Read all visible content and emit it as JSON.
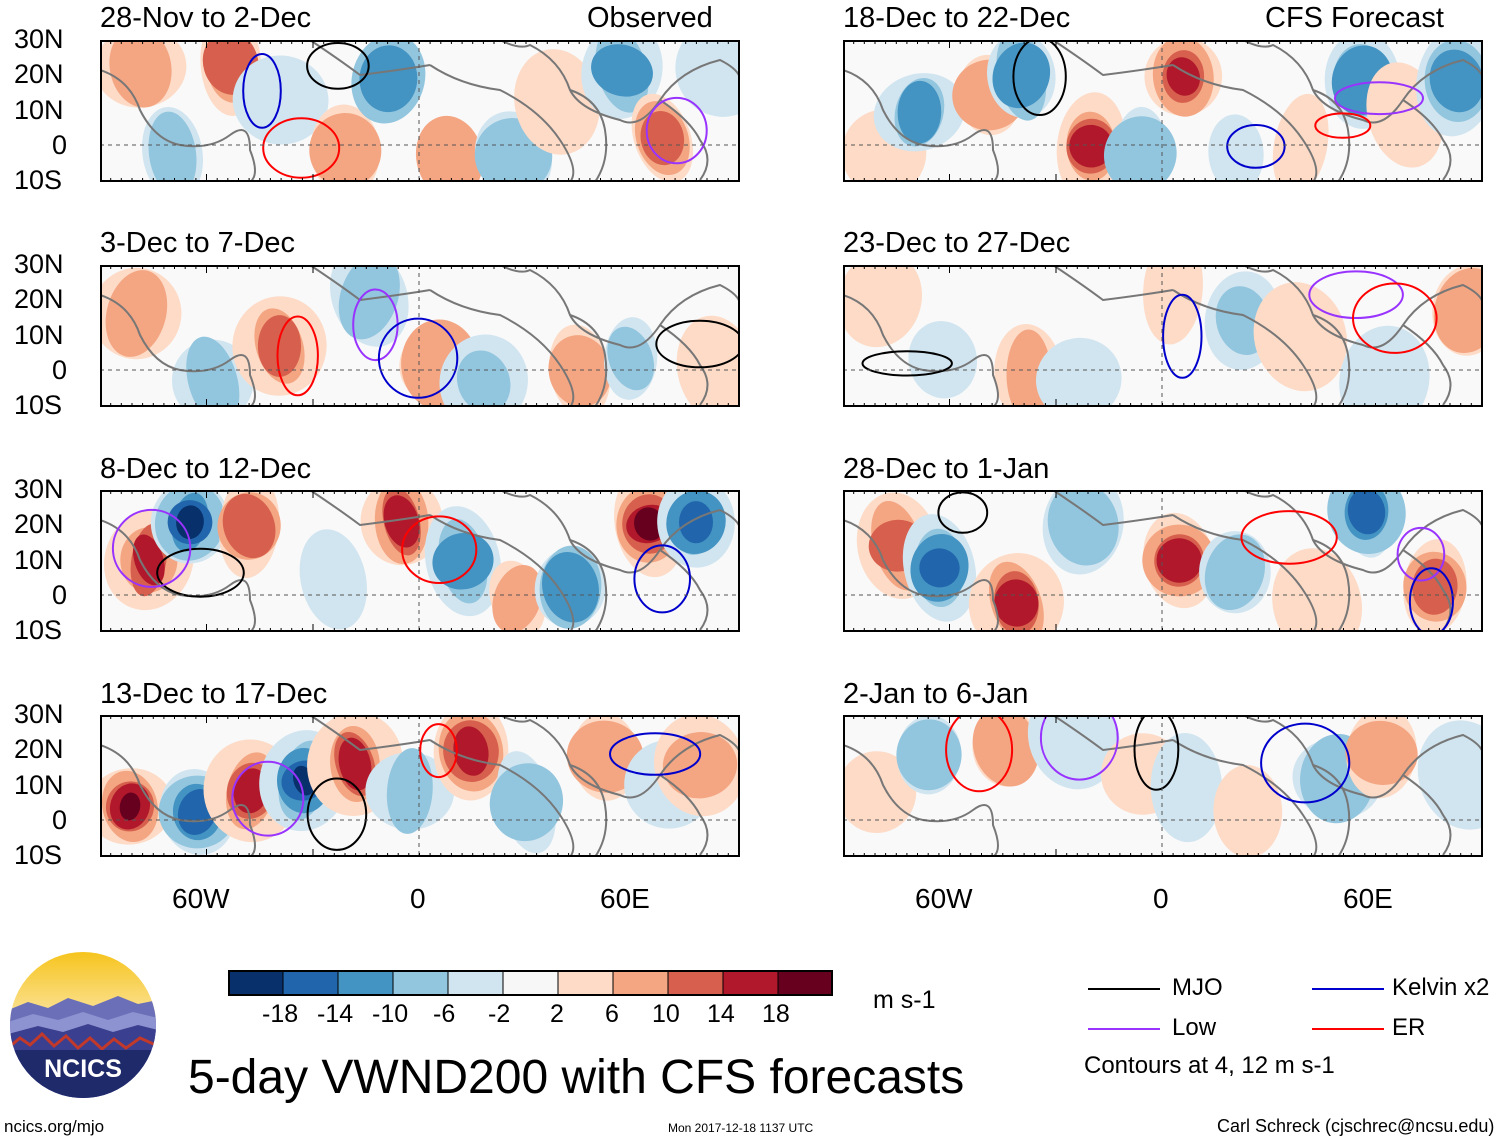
{
  "title": "5-day VWND200 with CFS forecasts",
  "left_column_header": "Observed",
  "right_column_header": "CFS Forecast",
  "panels_left": [
    {
      "label": "28-Nov to 2-Dec"
    },
    {
      "label": "3-Dec to 7-Dec"
    },
    {
      "label": "8-Dec to 12-Dec"
    },
    {
      "label": "13-Dec to 17-Dec"
    }
  ],
  "panels_right": [
    {
      "label": "18-Dec to 22-Dec"
    },
    {
      "label": "23-Dec to 27-Dec"
    },
    {
      "label": "28-Dec to 1-Jan"
    },
    {
      "label": "2-Jan to 6-Jan"
    }
  ],
  "lat_labels": [
    "30N",
    "20N",
    "10N",
    "0",
    "10S"
  ],
  "lon_labels": [
    "60W",
    "0",
    "60E"
  ],
  "colorbar": {
    "unit": "m s-1",
    "tick_labels": [
      "-18",
      "-14",
      "-10",
      "-6",
      "-2",
      "2",
      "6",
      "10",
      "14",
      "18"
    ],
    "colors": [
      "#08306b",
      "#2166ac",
      "#4393c3",
      "#92c5de",
      "#d1e5f0",
      "#f7f7f7",
      "#fddbc7",
      "#f4a582",
      "#d6604d",
      "#b2182b",
      "#67001f"
    ]
  },
  "legend": {
    "items": [
      {
        "label": "MJO",
        "color": "#000000"
      },
      {
        "label": "Kelvin x2",
        "color": "#0000cc"
      },
      {
        "label": "Low",
        "color": "#9933ff"
      },
      {
        "label": "ER",
        "color": "#ff0000"
      }
    ],
    "note": "Contours at 4, 12 m s-1"
  },
  "logo": {
    "text": "NCICS"
  },
  "footer": {
    "left": "ncics.org/mjo",
    "center": "Mon 2017-12-18 1137 UTC",
    "right": "Carl Schreck (cjschrec@ncsu.edu)"
  }
}
